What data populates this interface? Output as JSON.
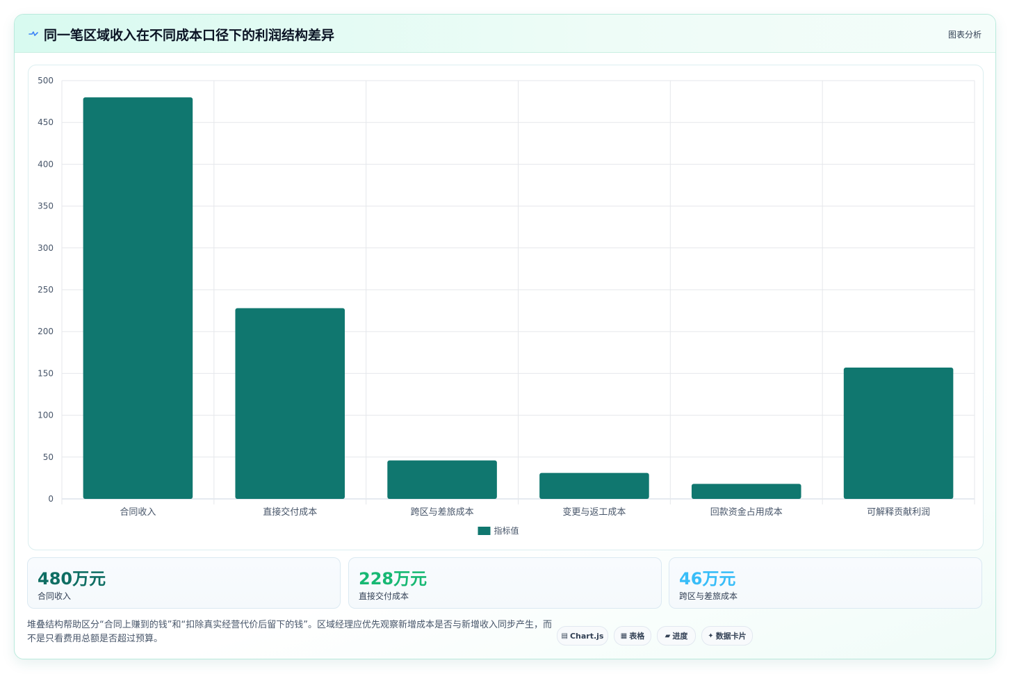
{
  "header": {
    "title": "同一笔区域收入在不同成本口径下的利润结构差异",
    "tag": "图表分析",
    "accent_color": "#3b82f6"
  },
  "chart_data": {
    "type": "bar",
    "categories": [
      "合同收入",
      "直接交付成本",
      "跨区与差旅成本",
      "变更与返工成本",
      "回款资金占用成本",
      "可解释贡献利润"
    ],
    "series": [
      {
        "name": "指标值",
        "values": [
          480,
          228,
          46,
          31,
          18,
          157
        ],
        "color": "#10776f"
      }
    ],
    "y_ticks": [
      0,
      50,
      100,
      150,
      200,
      250,
      300,
      350,
      400,
      450,
      500
    ],
    "ylim": [
      0,
      500
    ],
    "grid": true,
    "legend_position": "bottom-center"
  },
  "kpis": [
    {
      "value": "480万元",
      "label": "合同收入",
      "color": "#0f6e63"
    },
    {
      "value": "228万元",
      "label": "直接交付成本",
      "color": "#17b873"
    },
    {
      "value": "46万元",
      "label": "跨区与差旅成本",
      "color": "#38bdf8"
    }
  ],
  "note": {
    "text": "堆叠结构帮助区分“合同上赚到的钱”和“扣除真实经营代价后留下的钱”。区域经理应优先观察新增成本是否与新增收入同步产生，而不是只看费用总额是否超过预算。"
  },
  "badges": [
    {
      "icon": "chart-icon",
      "glyph": "▤",
      "label": "Chart.js"
    },
    {
      "icon": "table-icon",
      "glyph": "▦",
      "label": "表格"
    },
    {
      "icon": "progress-icon",
      "glyph": "▰",
      "label": "进度"
    },
    {
      "icon": "card-icon",
      "glyph": "✦",
      "label": "数据卡片"
    }
  ]
}
